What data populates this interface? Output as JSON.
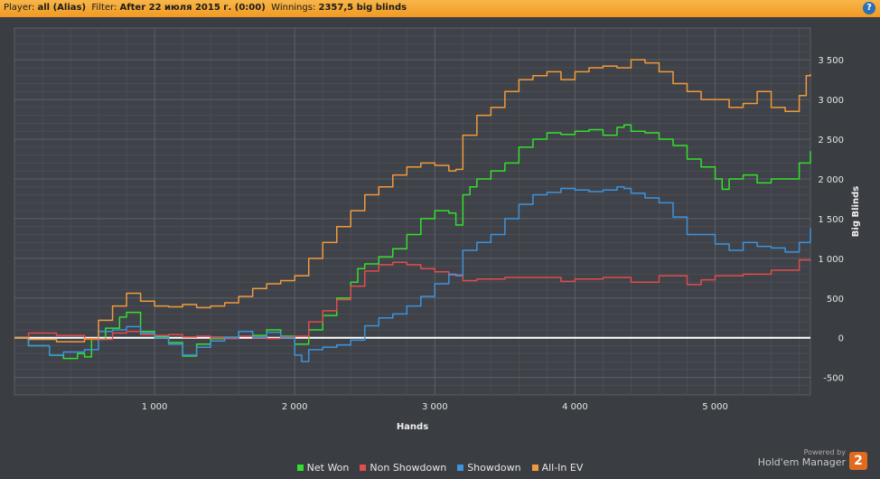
{
  "header": {
    "player_label": "Player:",
    "player_value": "all (Alias)",
    "filter_label": "Filter:",
    "filter_value": "After 22 июля 2015 г. (0:00)",
    "winnings_label": "Winnings:",
    "winnings_value": "2357,5 big blinds",
    "help_icon": "?"
  },
  "brand": {
    "powered": "Powered by",
    "name": "Hold'em Manager",
    "logo_text": "2"
  },
  "chart_data": {
    "type": "line",
    "xlabel": "Hands",
    "ylabel": "Big Blinds",
    "xlim": [
      0,
      5680
    ],
    "ylim": [
      -720,
      3900
    ],
    "x_ticks": [
      1000,
      2000,
      3000,
      4000,
      5000
    ],
    "x_tick_labels": [
      "1 000",
      "2 000",
      "3 000",
      "4 000",
      "5 000"
    ],
    "y_ticks": [
      -500,
      0,
      500,
      1000,
      1500,
      2000,
      2500,
      3000,
      3500
    ],
    "y_tick_labels": [
      "-500",
      "0",
      "500",
      "1 000",
      "1 500",
      "2 000",
      "2 500",
      "3 000",
      "3 500"
    ],
    "grid": true,
    "legend_position": "bottom",
    "colors": {
      "background": "#3a3d42",
      "grid": "#5b5f66",
      "zero_line": "#ffffff"
    },
    "series": [
      {
        "name": "Net Won",
        "color": "#33e02b",
        "x": [
          0,
          100,
          250,
          350,
          450,
          500,
          550,
          650,
          750,
          800,
          900,
          1000,
          1100,
          1200,
          1300,
          1400,
          1500,
          1600,
          1700,
          1800,
          1900,
          2000,
          2100,
          2200,
          2300,
          2400,
          2450,
          2500,
          2600,
          2700,
          2800,
          2900,
          3000,
          3100,
          3150,
          3200,
          3250,
          3300,
          3400,
          3500,
          3600,
          3700,
          3800,
          3900,
          4000,
          4100,
          4200,
          4300,
          4350,
          4400,
          4500,
          4600,
          4700,
          4800,
          4900,
          5000,
          5050,
          5100,
          5200,
          5300,
          5400,
          5500,
          5600,
          5680
        ],
        "y": [
          0,
          -100,
          -220,
          -260,
          -200,
          -240,
          -20,
          120,
          260,
          320,
          80,
          20,
          -60,
          -230,
          -80,
          -10,
          0,
          80,
          30,
          100,
          20,
          -80,
          100,
          280,
          500,
          700,
          870,
          930,
          1020,
          1120,
          1300,
          1500,
          1600,
          1570,
          1420,
          1800,
          1900,
          2000,
          2100,
          2200,
          2400,
          2500,
          2580,
          2560,
          2600,
          2620,
          2550,
          2650,
          2680,
          2600,
          2580,
          2500,
          2420,
          2250,
          2150,
          2000,
          1870,
          2000,
          2050,
          1950,
          2000,
          2000,
          2200,
          2350
        ]
      },
      {
        "name": "Non Showdown",
        "color": "#e24c4c",
        "x": [
          0,
          100,
          300,
          500,
          700,
          800,
          900,
          1000,
          1100,
          1200,
          1300,
          1400,
          1500,
          1600,
          1700,
          1800,
          1900,
          2000,
          2100,
          2200,
          2300,
          2400,
          2500,
          2600,
          2700,
          2800,
          2900,
          3000,
          3100,
          3200,
          3300,
          3500,
          3700,
          3900,
          4000,
          4200,
          4400,
          4600,
          4800,
          4900,
          5000,
          5200,
          5400,
          5600,
          5680
        ],
        "y": [
          0,
          60,
          30,
          -20,
          60,
          80,
          40,
          30,
          40,
          10,
          20,
          0,
          -10,
          20,
          0,
          -10,
          10,
          20,
          200,
          340,
          480,
          650,
          840,
          920,
          950,
          920,
          870,
          830,
          790,
          720,
          740,
          760,
          760,
          710,
          740,
          760,
          700,
          780,
          670,
          730,
          780,
          800,
          850,
          980,
          970
        ]
      },
      {
        "name": "Showdown",
        "color": "#3d93dd",
        "x": [
          0,
          100,
          250,
          350,
          500,
          600,
          700,
          800,
          900,
          1000,
          1100,
          1200,
          1300,
          1400,
          1500,
          1600,
          1700,
          1800,
          1900,
          2000,
          2050,
          2100,
          2200,
          2300,
          2400,
          2500,
          2600,
          2700,
          2800,
          2900,
          3000,
          3100,
          3150,
          3200,
          3300,
          3400,
          3500,
          3600,
          3700,
          3800,
          3900,
          4000,
          4100,
          4200,
          4300,
          4350,
          4400,
          4500,
          4600,
          4700,
          4800,
          4900,
          5000,
          5100,
          5200,
          5300,
          5400,
          5500,
          5600,
          5680
        ],
        "y": [
          0,
          -100,
          -220,
          -180,
          -150,
          80,
          100,
          140,
          60,
          0,
          -80,
          -220,
          -120,
          -40,
          0,
          80,
          10,
          70,
          0,
          -220,
          -300,
          -150,
          -120,
          -90,
          -30,
          150,
          250,
          300,
          400,
          520,
          680,
          800,
          780,
          1100,
          1200,
          1300,
          1500,
          1680,
          1800,
          1830,
          1880,
          1860,
          1840,
          1860,
          1900,
          1880,
          1820,
          1760,
          1700,
          1520,
          1300,
          1300,
          1180,
          1100,
          1200,
          1150,
          1130,
          1080,
          1200,
          1380
        ]
      },
      {
        "name": "All-In EV",
        "color": "#f09a3c",
        "x": [
          0,
          100,
          300,
          500,
          600,
          700,
          800,
          900,
          1000,
          1100,
          1200,
          1300,
          1400,
          1500,
          1600,
          1700,
          1800,
          1900,
          2000,
          2100,
          2200,
          2300,
          2400,
          2500,
          2600,
          2700,
          2800,
          2900,
          3000,
          3100,
          3150,
          3200,
          3300,
          3400,
          3500,
          3600,
          3700,
          3800,
          3900,
          4000,
          4100,
          4200,
          4300,
          4400,
          4500,
          4600,
          4700,
          4800,
          4900,
          5000,
          5100,
          5200,
          5300,
          5400,
          5500,
          5600,
          5650,
          5680
        ],
        "y": [
          0,
          -20,
          -50,
          -10,
          220,
          400,
          560,
          460,
          400,
          390,
          420,
          380,
          400,
          440,
          520,
          620,
          680,
          720,
          780,
          1000,
          1200,
          1400,
          1600,
          1800,
          1900,
          2050,
          2150,
          2200,
          2170,
          2100,
          2120,
          2550,
          2800,
          2900,
          3100,
          3250,
          3300,
          3350,
          3250,
          3350,
          3400,
          3420,
          3400,
          3500,
          3460,
          3350,
          3200,
          3100,
          3000,
          3000,
          2900,
          2950,
          3100,
          2900,
          2850,
          3050,
          3300,
          3320
        ]
      }
    ]
  }
}
